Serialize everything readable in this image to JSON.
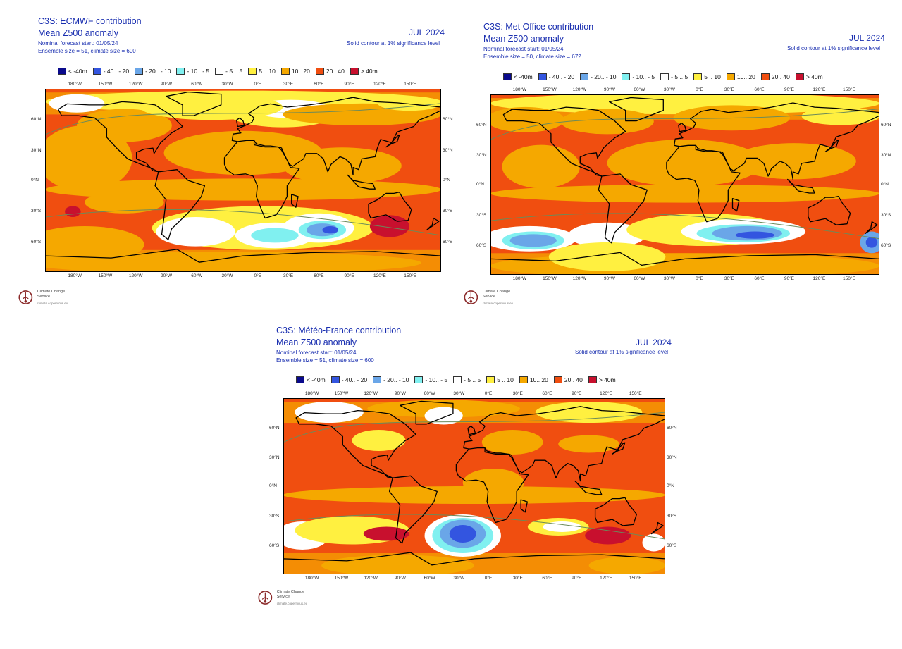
{
  "panels": [
    {
      "title": "C3S: ECMWF contribution",
      "subtitle": "Mean Z500 anomaly",
      "forecast_start": "Nominal forecast start: 01/05/24",
      "ensemble": "Ensemble size = 51, climate size = 600",
      "date": "JUL 2024",
      "significance": "Solid contour at 1% significance level",
      "logo_name": "Climate Change Service",
      "logo_url": "climate.copernicus.eu"
    },
    {
      "title": "C3S: Met Office contribution",
      "subtitle": "Mean Z500 anomaly",
      "forecast_start": "Nominal forecast start: 01/05/24",
      "ensemble": "Ensemble size = 50, climate size = 672",
      "date": "JUL 2024",
      "significance": "Solid contour at 1% significance level",
      "logo_name": "Climate Change Service",
      "logo_url": "climate.copernicus.eu"
    },
    {
      "title": "C3S: Météo-France contribution",
      "subtitle": "Mean Z500 anomaly",
      "forecast_start": "Nominal forecast start: 01/05/24",
      "ensemble": "Ensemble size = 51, climate size = 600",
      "date": "JUL 2024",
      "significance": "Solid contour at 1% significance level",
      "logo_name": "Climate Change Service",
      "logo_url": "climate.copernicus.eu"
    }
  ],
  "legend": [
    {
      "label": "< -40m",
      "color": "#0a0a8c"
    },
    {
      "label": "- 40.. - 20",
      "color": "#3355e0"
    },
    {
      "label": "- 20.. - 10",
      "color": "#6aa6e8"
    },
    {
      "label": "- 10.. - 5",
      "color": "#80f0f0"
    },
    {
      "label": "- 5 .. 5",
      "color": "#ffffff"
    },
    {
      "label": "5 .. 10",
      "color": "#fff040"
    },
    {
      "label": "10.. 20",
      "color": "#f5a800"
    },
    {
      "label": "20.. 40",
      "color": "#f04e10"
    },
    {
      "label": "> 40m",
      "color": "#c8102e"
    }
  ],
  "lon_labels": [
    "180°W",
    "150°W",
    "120°W",
    "90°W",
    "60°W",
    "30°W",
    "0°E",
    "30°E",
    "60°E",
    "90°E",
    "120°E",
    "150°E"
  ],
  "lat_labels": [
    "60°N",
    "30°N",
    "0°N",
    "30°S",
    "60°S"
  ],
  "colors": {
    "background": "#f04e10",
    "ocean_base": "#f04e10",
    "continent_outline": "#000000",
    "text_blue": "#1a2fb0"
  }
}
